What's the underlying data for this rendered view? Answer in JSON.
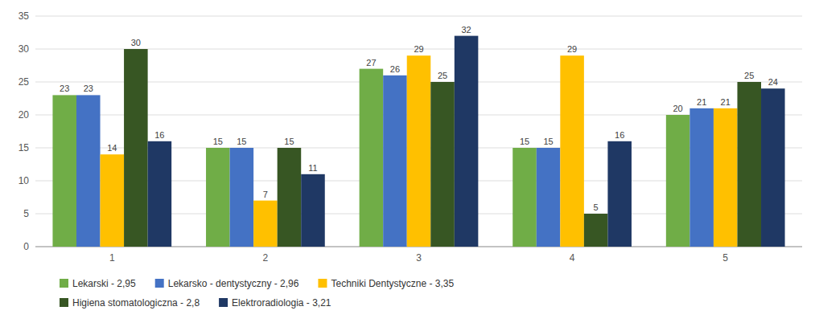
{
  "chart_data": {
    "type": "bar",
    "categories": [
      "1",
      "2",
      "3",
      "4",
      "5"
    ],
    "series": [
      {
        "name": "Lekarski - 2,95",
        "color": "#70ad47",
        "values": [
          23,
          15,
          27,
          15,
          20
        ]
      },
      {
        "name": "Lekarsko - dentystyczny - 2,96",
        "color": "#4472c4",
        "values": [
          23,
          15,
          26,
          15,
          21
        ]
      },
      {
        "name": "Techniki Dentystyczne - 3,35",
        "color": "#ffc000",
        "values": [
          14,
          7,
          29,
          29,
          21
        ]
      },
      {
        "name": "Higiena stomatologiczna - 2,8",
        "color": "#375623",
        "values": [
          30,
          15,
          25,
          5,
          25
        ]
      },
      {
        "name": "Elektroradiologia - 3,21",
        "color": "#1f3864",
        "values": [
          16,
          11,
          32,
          16,
          24
        ]
      }
    ],
    "ylim": [
      0,
      35
    ],
    "yticks": [
      0,
      5,
      10,
      15,
      20,
      25,
      30,
      35
    ],
    "grid": true,
    "data_labels": true,
    "legend": "bottom"
  }
}
